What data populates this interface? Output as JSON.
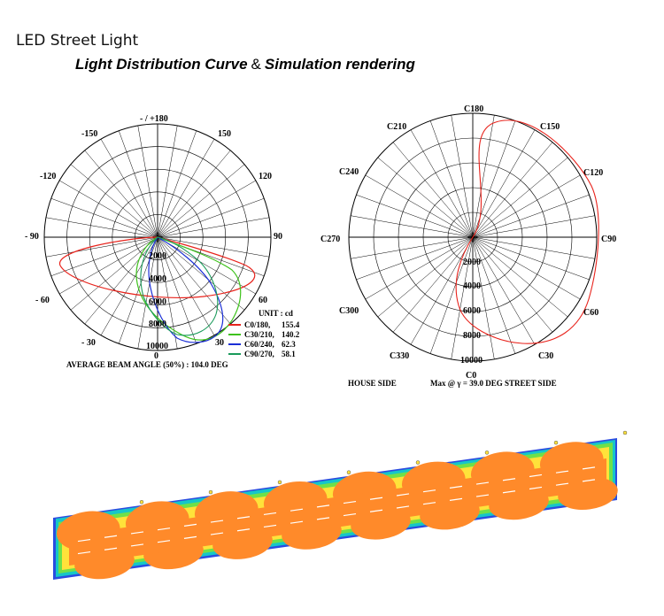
{
  "header": {
    "product_title": "LED Street Light",
    "subtitle_part1": "Light Distribution Curve",
    "subtitle_amp": "&",
    "subtitle_part2": "Simulation rendering"
  },
  "left_chart": {
    "angle_labels": {
      "top": "- / +180",
      "n150": "-150",
      "p150": "150",
      "n120": "-120",
      "p120": "120",
      "n90": "- 90",
      "p90": "90",
      "n60": "- 60",
      "p60": "60",
      "n30": "- 30",
      "p30": "30",
      "zero": "0"
    },
    "radial_labels": [
      "2000",
      "4000",
      "6000",
      "8000",
      "10000"
    ],
    "unit_label": "UNIT : cd",
    "legend": [
      {
        "label": "C0/180,",
        "value": "155.4",
        "color": "#e8231c"
      },
      {
        "label": "C30/210,",
        "value": "140.2",
        "color": "#3ec21c"
      },
      {
        "label": "C60/240,",
        "value": "62.3",
        "color": "#1b2fd6"
      },
      {
        "label": "C90/270,",
        "value": "58.1",
        "color": "#1a9a5a"
      }
    ],
    "beam_angle_text": "AVERAGE  BEAM ANGLE (50%)  : 104.0  DEG"
  },
  "right_chart": {
    "angle_labels": {
      "c180": "C180",
      "c150": "C150",
      "c120": "C120",
      "c90": "C90",
      "c60": "C60",
      "c30": "C30",
      "c0": "C0",
      "c330": "C330",
      "c300": "C300",
      "c270": "C270",
      "c240": "C240",
      "c210": "C210"
    },
    "radial_labels": [
      "2000",
      "4000",
      "6000",
      "8000",
      "10000"
    ],
    "house_side": "HOUSE SIDE",
    "max_text": "Max  @ γ  =  39.0 DEG  STREET SIDE",
    "curve_color": "#e8231c"
  },
  "simulation": {
    "colors": {
      "core": "#ff8a2a",
      "edge1": "#ffe23a",
      "edge2": "#6ee04a",
      "edge3": "#16c6c8",
      "edge4": "#2a4ce0"
    }
  }
}
